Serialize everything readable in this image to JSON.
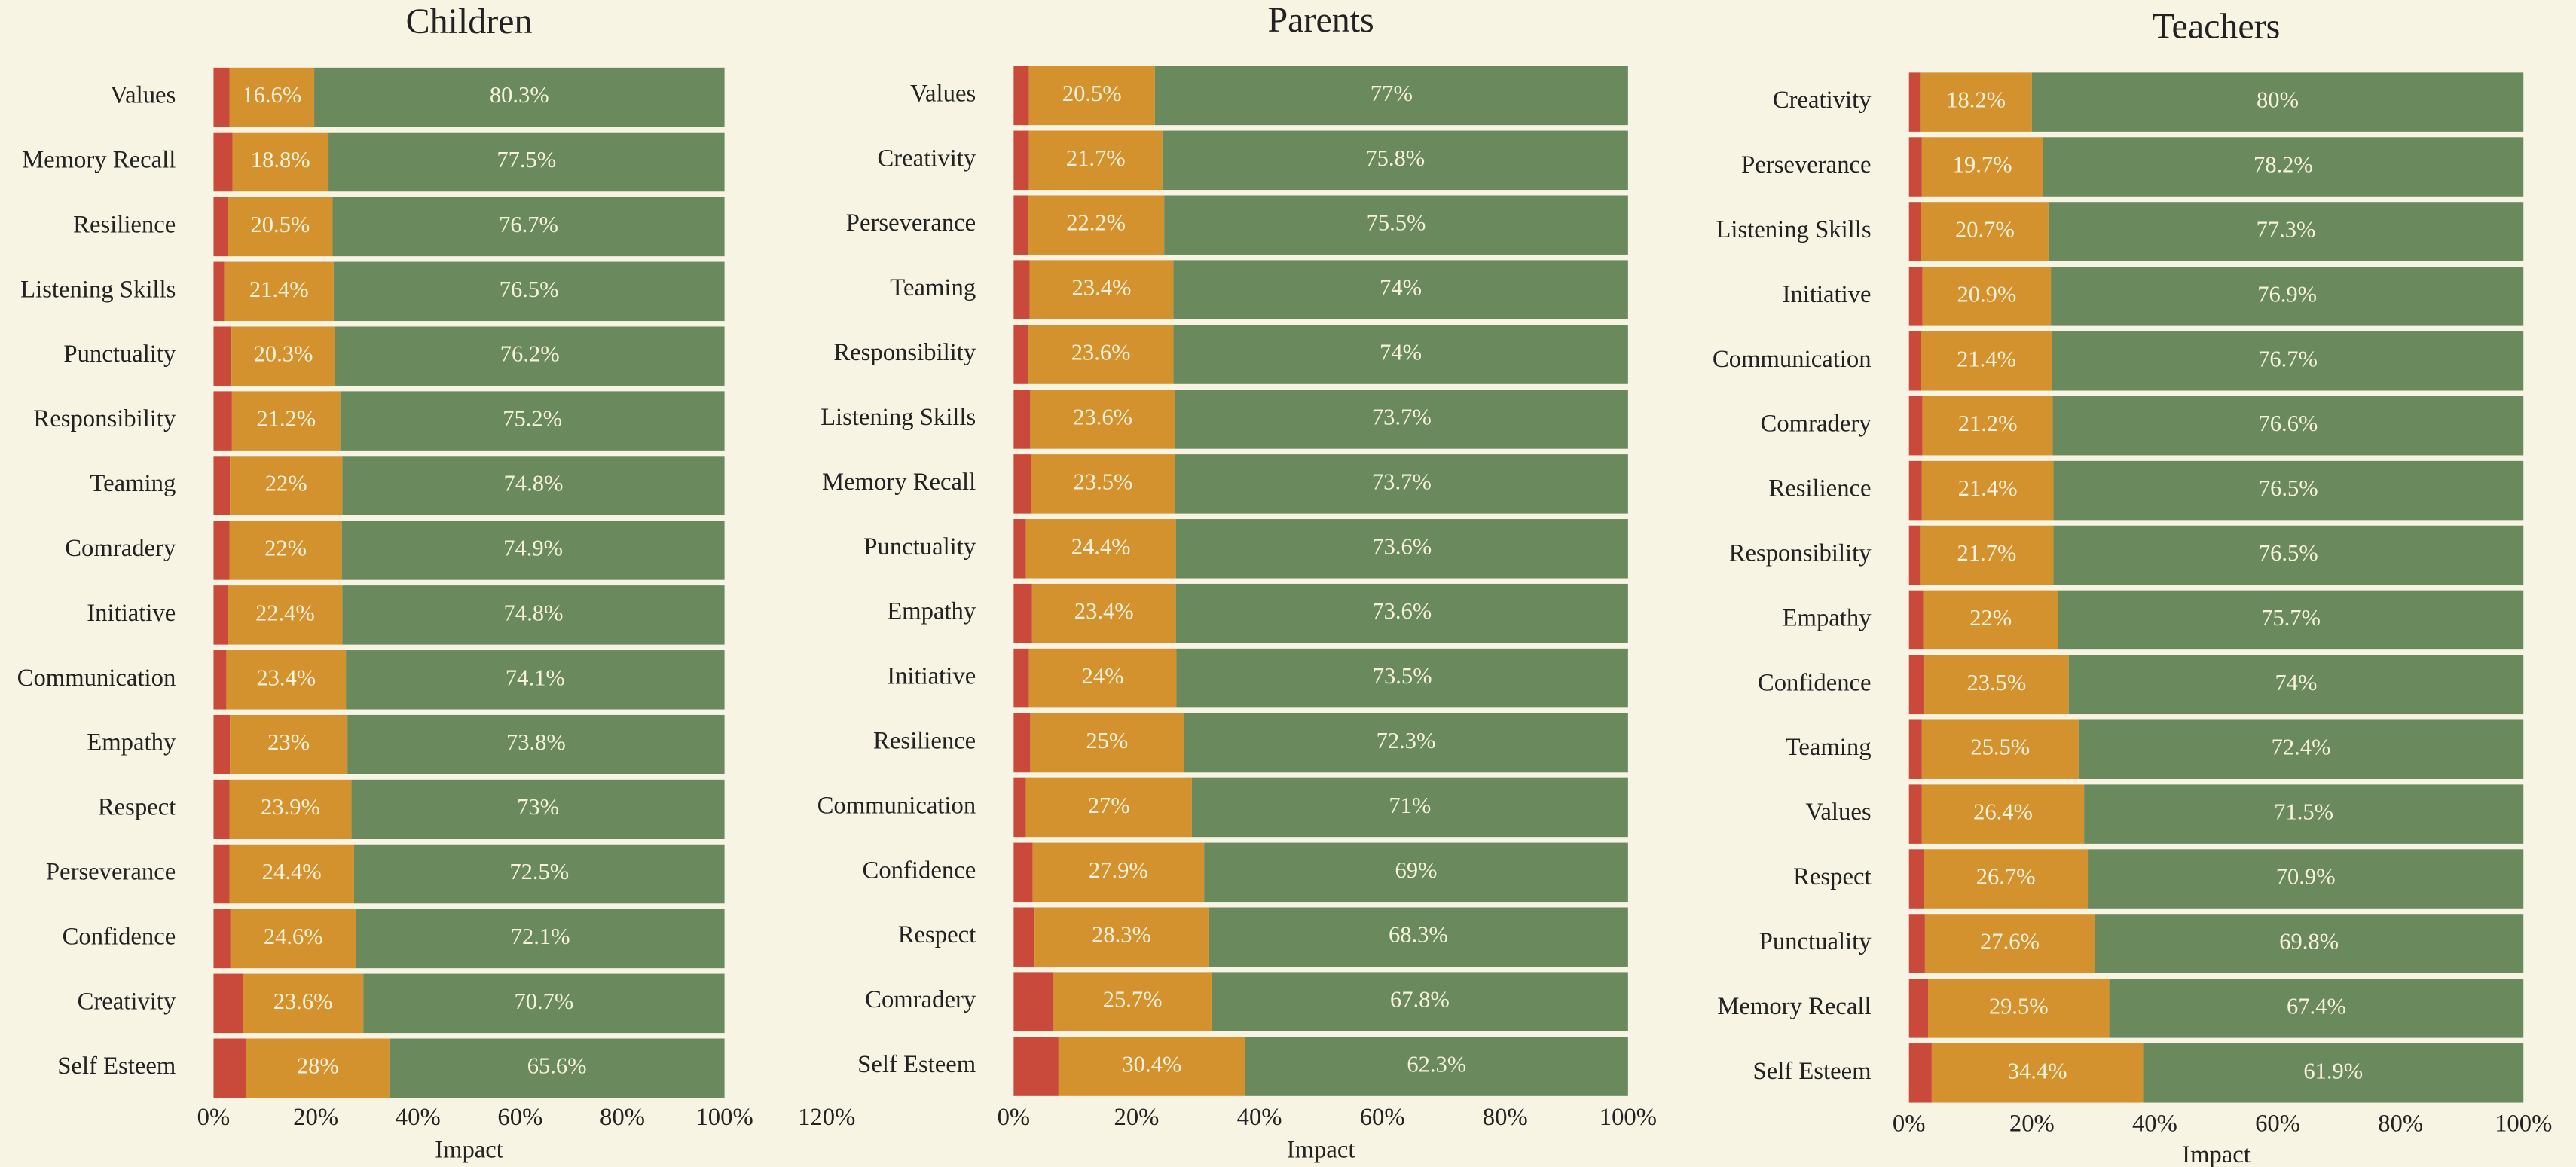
{
  "chart_data": [
    {
      "type": "stacked-barh",
      "title": "Children",
      "x_label": "Impact",
      "categories": [
        "Values",
        "Memory Recall",
        "Resilience",
        "Listening Skills",
        "Punctuality",
        "Responsibility",
        "Teaming",
        "Comradery",
        "Initiative",
        "Communication",
        "Empathy",
        "Respect",
        "Perseverance",
        "Confidence",
        "Creativity",
        "Self Esteem"
      ],
      "series": [
        {
          "color": "#c94a3b",
          "values": [
            3.1,
            3.7,
            2.8,
            2.1,
            3.5,
            3.6,
            3.2,
            3.1,
            2.8,
            2.5,
            3.2,
            3.1,
            3.1,
            3.3,
            5.7,
            6.4
          ]
        },
        {
          "color": "#d4922e",
          "values": [
            16.6,
            18.8,
            20.5,
            21.4,
            20.3,
            21.2,
            22,
            22,
            22.4,
            23.4,
            23,
            23.9,
            24.4,
            24.6,
            23.6,
            28
          ],
          "value_labels": [
            "16.6%",
            "18.8%",
            "20.5%",
            "21.4%",
            "20.3%",
            "21.2%",
            "22%",
            "22%",
            "22.4%",
            "23.4%",
            "23%",
            "23.9%",
            "24.4%",
            "24.6%",
            "23.6%",
            "28%"
          ]
        },
        {
          "color": "#6a8a5e",
          "values": [
            80.3,
            77.5,
            76.7,
            76.5,
            76.2,
            75.2,
            74.8,
            74.9,
            74.8,
            74.1,
            73.8,
            73,
            72.5,
            72.1,
            70.7,
            65.6
          ],
          "value_labels": [
            "80.3%",
            "77.5%",
            "76.7%",
            "76.5%",
            "76.2%",
            "75.2%",
            "74.8%",
            "74.9%",
            "74.8%",
            "74.1%",
            "73.8%",
            "73%",
            "72.5%",
            "72.1%",
            "70.7%",
            "65.6%"
          ]
        }
      ],
      "xlim": [
        0,
        100
      ],
      "xticks": [
        {
          "value": 0,
          "label": "0%"
        },
        {
          "value": 20,
          "label": "20%"
        },
        {
          "value": 40,
          "label": "40%"
        },
        {
          "value": 60,
          "label": "60%"
        },
        {
          "value": 80,
          "label": "80%"
        },
        {
          "value": 100,
          "label": "100%"
        },
        {
          "value": 120,
          "label": "120%"
        }
      ]
    },
    {
      "type": "stacked-barh",
      "title": "Parents",
      "x_label": "Impact",
      "categories": [
        "Values",
        "Creativity",
        "Perseverance",
        "Teaming",
        "Responsibility",
        "Listening Skills",
        "Memory Recall",
        "Punctuality",
        "Empathy",
        "Initiative",
        "Resilience",
        "Communication",
        "Confidence",
        "Respect",
        "Comradery",
        "Self Esteem"
      ],
      "series": [
        {
          "color": "#c94a3b",
          "values": [
            2.5,
            2.5,
            2.3,
            2.6,
            2.4,
            2.7,
            2.8,
            2.0,
            3.0,
            2.5,
            2.7,
            2.0,
            3.1,
            3.4,
            6.5,
            7.3
          ]
        },
        {
          "color": "#d4922e",
          "values": [
            20.5,
            21.7,
            22.2,
            23.4,
            23.6,
            23.6,
            23.5,
            24.4,
            23.4,
            24,
            25,
            27,
            27.9,
            28.3,
            25.7,
            30.4
          ],
          "value_labels": [
            "20.5%",
            "21.7%",
            "22.2%",
            "23.4%",
            "23.6%",
            "23.6%",
            "23.5%",
            "24.4%",
            "23.4%",
            "24%",
            "25%",
            "27%",
            "27.9%",
            "28.3%",
            "25.7%",
            "30.4%"
          ]
        },
        {
          "color": "#6a8a5e",
          "values": [
            77,
            75.8,
            75.5,
            74,
            74,
            73.7,
            73.7,
            73.6,
            73.6,
            73.5,
            72.3,
            71,
            69,
            68.3,
            67.8,
            62.3
          ],
          "value_labels": [
            "77%",
            "75.8%",
            "75.5%",
            "74%",
            "74%",
            "73.7%",
            "73.7%",
            "73.6%",
            "73.6%",
            "73.5%",
            "72.3%",
            "71%",
            "69%",
            "68.3%",
            "67.8%",
            "62.3%"
          ]
        }
      ],
      "xlim": [
        0,
        100
      ],
      "xticks": [
        {
          "value": 0,
          "label": "0%"
        },
        {
          "value": 20,
          "label": "20%"
        },
        {
          "value": 40,
          "label": "40%"
        },
        {
          "value": 60,
          "label": "60%"
        },
        {
          "value": 80,
          "label": "80%"
        },
        {
          "value": 100,
          "label": "100%"
        }
      ]
    },
    {
      "type": "stacked-barh",
      "title": "Teachers",
      "x_label": "Impact",
      "categories": [
        "Creativity",
        "Perseverance",
        "Listening Skills",
        "Initiative",
        "Communication",
        "Comradery",
        "Resilience",
        "Responsibility",
        "Empathy",
        "Confidence",
        "Teaming",
        "Values",
        "Respect",
        "Punctuality",
        "Memory Recall",
        "Self Esteem"
      ],
      "series": [
        {
          "color": "#c94a3b",
          "values": [
            1.8,
            2.1,
            2.0,
            2.2,
            1.9,
            2.2,
            2.1,
            1.8,
            2.3,
            2.5,
            2.1,
            2.1,
            2.4,
            2.6,
            3.1,
            3.7
          ]
        },
        {
          "color": "#d4922e",
          "values": [
            18.2,
            19.7,
            20.7,
            20.9,
            21.4,
            21.2,
            21.4,
            21.7,
            22,
            23.5,
            25.5,
            26.4,
            26.7,
            27.6,
            29.5,
            34.4
          ],
          "value_labels": [
            "18.2%",
            "19.7%",
            "20.7%",
            "20.9%",
            "21.4%",
            "21.2%",
            "21.4%",
            "21.7%",
            "22%",
            "23.5%",
            "25.5%",
            "26.4%",
            "26.7%",
            "27.6%",
            "29.5%",
            "34.4%"
          ]
        },
        {
          "color": "#6a8a5e",
          "values": [
            80,
            78.2,
            77.3,
            76.9,
            76.7,
            76.6,
            76.5,
            76.5,
            75.7,
            74,
            72.4,
            71.5,
            70.9,
            69.8,
            67.4,
            61.9
          ],
          "value_labels": [
            "80%",
            "78.2%",
            "77.3%",
            "76.9%",
            "76.7%",
            "76.6%",
            "76.5%",
            "76.5%",
            "75.7%",
            "74%",
            "72.4%",
            "71.5%",
            "70.9%",
            "69.8%",
            "67.4%",
            "61.9%"
          ]
        }
      ],
      "xlim": [
        0,
        100
      ],
      "xticks": [
        {
          "value": 0,
          "label": "0%"
        },
        {
          "value": 20,
          "label": "20%"
        },
        {
          "value": 40,
          "label": "40%"
        },
        {
          "value": 60,
          "label": "60%"
        },
        {
          "value": 80,
          "label": "80%"
        },
        {
          "value": 100,
          "label": "100%"
        }
      ]
    }
  ]
}
